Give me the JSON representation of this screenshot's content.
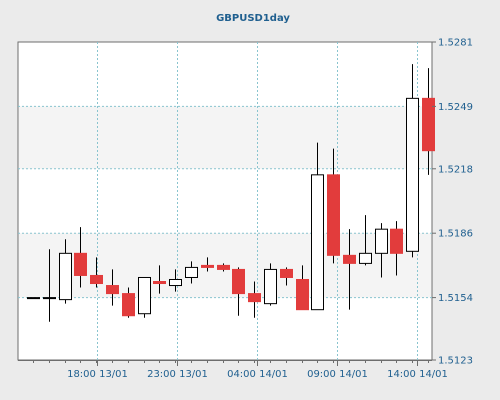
{
  "chart_data": {
    "type": "candlestick",
    "title": "GBPUSD1day",
    "ylim": [
      1.5123,
      1.5281
    ],
    "y_ticks": [
      "1.5281",
      "1.5249",
      "1.5218",
      "1.5186",
      "1.5154",
      "1.5123"
    ],
    "x_ticks": [
      "18:00 13/01",
      "23:00 13/01",
      "04:00 14/01",
      "09:00 14/01",
      "14:00 14/01"
    ],
    "grid": true,
    "colors": {
      "bull_fill": "#ffffff",
      "bear_fill": "#e23c3c",
      "wick": "#000000",
      "grid": "#89c4cf",
      "band": "#f4f4f4",
      "text": "#1f5f8f",
      "background": "#ebebeb"
    },
    "candles": [
      {
        "open": 1.5154,
        "high": 1.5154,
        "low": 1.5154,
        "close": 1.5154
      },
      {
        "open": 1.5154,
        "high": 1.5178,
        "low": 1.5142,
        "close": 1.5154
      },
      {
        "open": 1.5153,
        "high": 1.5183,
        "low": 1.5151,
        "close": 1.5176
      },
      {
        "open": 1.5176,
        "high": 1.5189,
        "low": 1.5159,
        "close": 1.5165
      },
      {
        "open": 1.5165,
        "high": 1.5174,
        "low": 1.5159,
        "close": 1.5161
      },
      {
        "open": 1.516,
        "high": 1.5168,
        "low": 1.515,
        "close": 1.5156
      },
      {
        "open": 1.5156,
        "high": 1.5159,
        "low": 1.5144,
        "close": 1.5145
      },
      {
        "open": 1.5146,
        "high": 1.5164,
        "low": 1.5144,
        "close": 1.5164
      },
      {
        "open": 1.5162,
        "high": 1.517,
        "low": 1.5156,
        "close": 1.5161
      },
      {
        "open": 1.516,
        "high": 1.5168,
        "low": 1.5157,
        "close": 1.5163
      },
      {
        "open": 1.5164,
        "high": 1.5172,
        "low": 1.5161,
        "close": 1.5169
      },
      {
        "open": 1.517,
        "high": 1.5174,
        "low": 1.5167,
        "close": 1.5169
      },
      {
        "open": 1.517,
        "high": 1.5171,
        "low": 1.5167,
        "close": 1.5168
      },
      {
        "open": 1.5168,
        "high": 1.5169,
        "low": 1.5145,
        "close": 1.5156
      },
      {
        "open": 1.5156,
        "high": 1.5162,
        "low": 1.5144,
        "close": 1.5152
      },
      {
        "open": 1.5151,
        "high": 1.5171,
        "low": 1.515,
        "close": 1.5168
      },
      {
        "open": 1.5168,
        "high": 1.5169,
        "low": 1.516,
        "close": 1.5164
      },
      {
        "open": 1.5163,
        "high": 1.517,
        "low": 1.5148,
        "close": 1.5148
      },
      {
        "open": 1.5148,
        "high": 1.5231,
        "low": 1.5148,
        "close": 1.5215
      },
      {
        "open": 1.5215,
        "high": 1.5228,
        "low": 1.5171,
        "close": 1.5175
      },
      {
        "open": 1.5175,
        "high": 1.5188,
        "low": 1.5148,
        "close": 1.5171
      },
      {
        "open": 1.5171,
        "high": 1.5195,
        "low": 1.517,
        "close": 1.5176
      },
      {
        "open": 1.5176,
        "high": 1.5191,
        "low": 1.5164,
        "close": 1.5188
      },
      {
        "open": 1.5188,
        "high": 1.5192,
        "low": 1.5165,
        "close": 1.5176
      },
      {
        "open": 1.5177,
        "high": 1.527,
        "low": 1.5174,
        "close": 1.5253
      },
      {
        "open": 1.5253,
        "high": 1.5268,
        "low": 1.5215,
        "close": 1.5227
      }
    ]
  }
}
